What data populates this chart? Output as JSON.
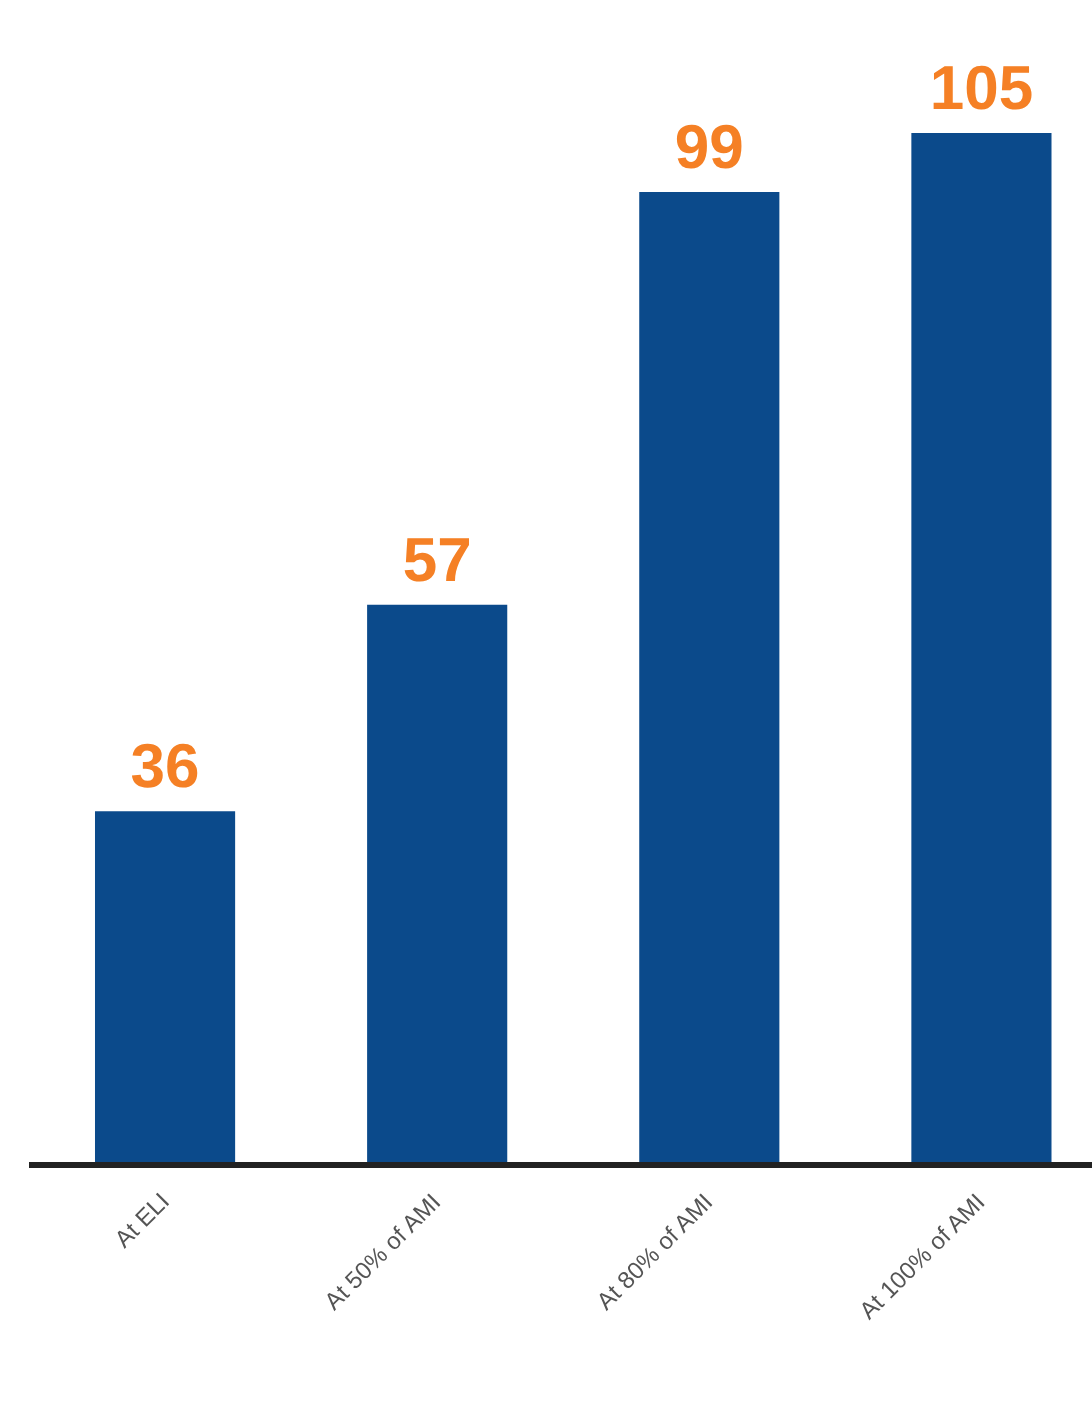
{
  "chart_data": {
    "type": "bar",
    "categories": [
      "At ELI",
      "At 50% of AMI",
      "At 80% of AMI",
      "At 100% of AMI"
    ],
    "values": [
      36,
      57,
      99,
      105
    ],
    "color": "#0b4a8b",
    "data_labels": true,
    "grid": false
  }
}
